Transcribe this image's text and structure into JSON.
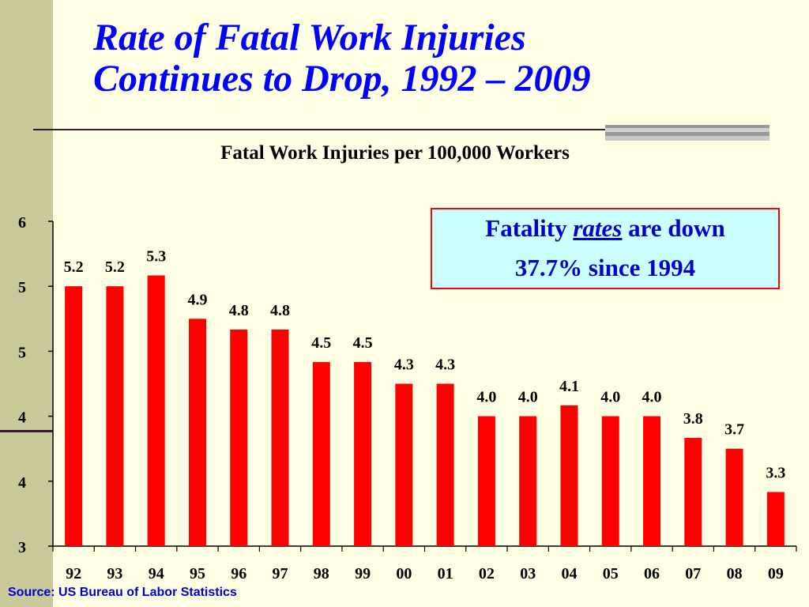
{
  "slide": {
    "title_line1": "Rate of Fatal Work Injuries",
    "title_line2": "Continues to Drop, 1992 – 2009",
    "source": "Source: US Bureau of Labor Statistics"
  },
  "callout": {
    "text_prefix": "Fatality",
    "text_emphasis": "rates",
    "text_suffix": "are down",
    "line2": "37.7% since 1994"
  },
  "colors": {
    "title": "#0000FF",
    "bar": "#FF0000",
    "callout_background": "#CCFFFF",
    "callout_border": "#FF0000",
    "slide_background": "#FFFFE6",
    "side_band": "#C9C99A"
  },
  "chart_data": {
    "type": "bar",
    "title": "Fatal Work Injuries per 100,000 Workers",
    "categories": [
      "92",
      "93",
      "94",
      "95",
      "96",
      "97",
      "98",
      "99",
      "00",
      "01",
      "02",
      "03",
      "04",
      "05",
      "06",
      "07",
      "08",
      "09"
    ],
    "values": [
      5.2,
      5.2,
      5.3,
      4.9,
      4.8,
      4.8,
      4.5,
      4.5,
      4.3,
      4.3,
      4.0,
      4.0,
      4.1,
      4.0,
      4.0,
      3.8,
      3.7,
      3.3
    ],
    "data_labels": [
      "5.2",
      "5.2",
      "5.3",
      "4.9",
      "4.8",
      "4.8",
      "4.5",
      "4.5",
      "4.3",
      "4.3",
      "4.0",
      "4.0",
      "4.1",
      "4.0",
      "4.0",
      "3.8",
      "3.7",
      "3.3"
    ],
    "y_tick_labels": [
      "3",
      "4",
      "4",
      "5",
      "5",
      "6"
    ],
    "ylim": [
      2.8,
      5.8
    ],
    "grid": false,
    "legend": "none",
    "series": [
      {
        "values": [
          5.2,
          5.2,
          5.3,
          4.9,
          4.8,
          4.8,
          4.5,
          4.5,
          4.3,
          4.3,
          4.0,
          4.0,
          4.1,
          4.0,
          4.0,
          3.8,
          3.7,
          3.3
        ]
      }
    ]
  }
}
